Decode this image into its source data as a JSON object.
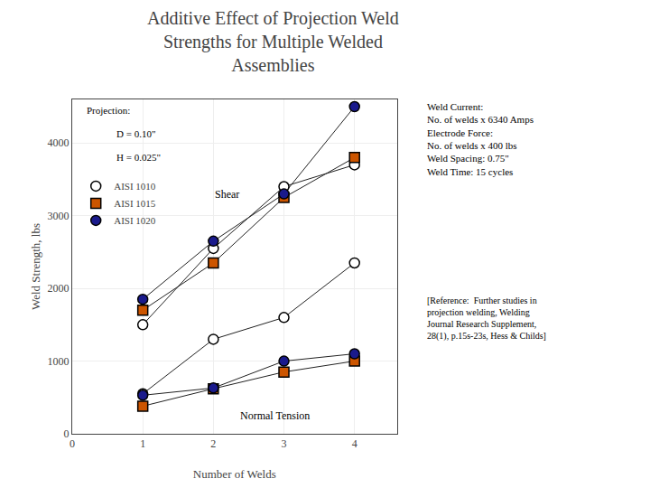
{
  "chart_data": {
    "type": "line",
    "title": "Additive Effect of Projection Weld\nStrengths for Multiple Welded\nAssemblies",
    "xlabel": "Number of Welds",
    "ylabel": "Weld Strength, lbs",
    "x": [
      1,
      2,
      3,
      4
    ],
    "color": "#222222",
    "series": [
      {
        "name": "AISI 1010",
        "color": "#ffffff",
        "marker": "circle",
        "values": [
          1500,
          2550,
          3400,
          3700
        ]
      },
      {
        "name": "AISI 1015",
        "color": "#cc5500",
        "marker": "square",
        "values": [
          1700,
          2350,
          3250,
          3800
        ]
      },
      {
        "name": "AISI 1020",
        "color": "#1a1a8c",
        "marker": "circle",
        "values": [
          1850,
          2650,
          3300,
          4500
        ]
      },
      {
        "name": "AISI 1010",
        "color": "#ffffff",
        "marker": "circle",
        "values": [
          550,
          1300,
          1600,
          2350
        ]
      },
      {
        "name": "AISI 1015",
        "color": "#cc5500",
        "marker": "square",
        "values": [
          380,
          620,
          850,
          1000
        ]
      },
      {
        "name": "AISI 1020",
        "color": "#1a1a8c",
        "marker": "circle",
        "values": [
          530,
          630,
          1000,
          1100
        ]
      }
    ],
    "xlim": [
      0,
      4.6
    ],
    "ylim": [
      0,
      4600
    ],
    "xticks": [
      0,
      1,
      2,
      3,
      4
    ],
    "yticks": [
      0,
      1000,
      2000,
      3000,
      4000
    ],
    "grid": true,
    "legend": "upper left",
    "annotations": [
      "Shear",
      "Normal Tension",
      "Projection:",
      "D = 0.10\"",
      "H = 0.025\"",
      "Weld Current:\nNo. of welds x 6340 Amps\nElectrode Force:\nNo. of welds x 400 lbs\nWeld Spacing: 0.75\"\nWeld Time: 15 cycles",
      "[Reference:  Further studies in\nprojection welding, Welding\nJournal Research Supplement,\n28(1), p.15s-23s, Hess & Childs]"
    ]
  }
}
